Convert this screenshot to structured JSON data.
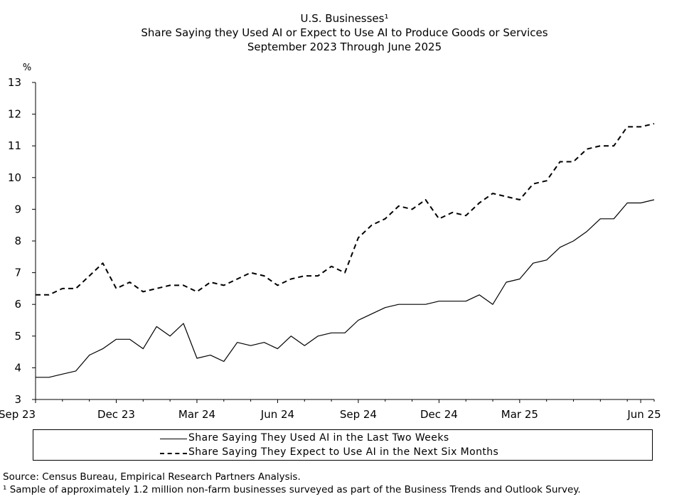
{
  "title": {
    "line1": "U.S. Businesses¹",
    "line2": "Share Saying they Used AI or Expect to Use AI to Produce Goods or Services",
    "line3": "September 2023 Through June 2025"
  },
  "footnotes": {
    "source": "Source: Census Bureau, Empirical Research Partners Analysis.",
    "note": "¹ Sample of approximately 1.2 million non-farm businesses surveyed as part of the Business Trends and Outlook Survey."
  },
  "chart_data": {
    "type": "line",
    "ylabel": "%",
    "ylim": [
      3,
      13
    ],
    "yticks": [
      3,
      4,
      5,
      6,
      7,
      8,
      9,
      10,
      11,
      12,
      13
    ],
    "x_tick_labels": [
      "Sep 23",
      "Dec 23",
      "Mar 24",
      "Jun 24",
      "Sep 24",
      "Dec 24",
      "Mar 25",
      "Jun 25"
    ],
    "grid": false,
    "legend_position": "bottom",
    "series": [
      {
        "name": "Share Saying They Used AI in the Last Two Weeks",
        "style": "solid",
        "color": "#000000",
        "values": [
          3.7,
          3.7,
          3.8,
          3.9,
          4.4,
          4.6,
          4.9,
          4.9,
          4.6,
          5.3,
          5.0,
          5.4,
          4.3,
          4.4,
          4.2,
          4.8,
          4.7,
          4.8,
          4.6,
          5.0,
          4.7,
          5.0,
          5.1,
          5.1,
          5.5,
          5.7,
          5.9,
          6.0,
          6.0,
          6.0,
          6.1,
          6.1,
          6.1,
          6.3,
          6.0,
          6.7,
          6.8,
          7.3,
          7.4,
          7.8,
          8.0,
          8.3,
          8.7,
          8.7,
          9.2,
          9.2,
          9.3
        ]
      },
      {
        "name": "Share Saying They Expect to Use AI in the Next Six Months",
        "style": "dashed",
        "color": "#000000",
        "values": [
          6.3,
          6.3,
          6.5,
          6.5,
          6.9,
          7.3,
          6.5,
          6.7,
          6.4,
          6.5,
          6.6,
          6.6,
          6.4,
          6.7,
          6.6,
          6.8,
          7.0,
          6.9,
          6.6,
          6.8,
          6.9,
          6.9,
          7.2,
          7.0,
          8.1,
          8.5,
          8.7,
          9.1,
          9.0,
          9.3,
          8.7,
          8.9,
          8.8,
          9.2,
          9.5,
          9.4,
          9.3,
          9.8,
          9.9,
          10.5,
          10.5,
          10.9,
          11.0,
          11.0,
          11.6,
          11.6,
          11.7
        ]
      }
    ]
  }
}
